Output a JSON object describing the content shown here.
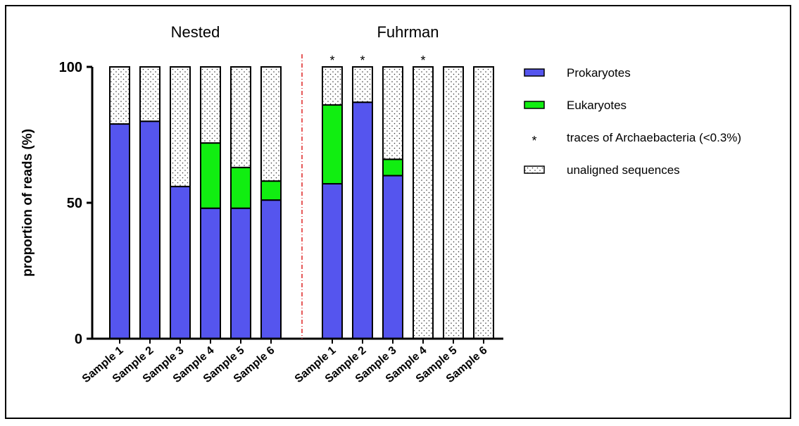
{
  "chart_data": {
    "type": "bar",
    "stacked": true,
    "ylabel": "proportion of reads (%)",
    "ylim": [
      0,
      100
    ],
    "yticks": [
      0,
      50,
      100
    ],
    "groups": [
      {
        "title": "Nested",
        "categories": [
          "Sample 1",
          "Sample 2",
          "Sample 3",
          "Sample 4",
          "Sample 5",
          "Sample 6"
        ]
      },
      {
        "title": "Fuhrman",
        "categories": [
          "Sample 1",
          "Sample 2",
          "Sample 3",
          "Sample 4",
          "Sample 5",
          "Sample 6"
        ]
      }
    ],
    "series": [
      {
        "name": "Prokaryotes",
        "color": "#5555ee",
        "values": [
          79,
          80,
          56,
          48,
          48,
          51,
          57,
          87,
          60,
          0,
          0,
          0
        ]
      },
      {
        "name": "Eukaryotes",
        "color": "#11ee11",
        "values": [
          0,
          0,
          0,
          24,
          15,
          7,
          29,
          0,
          6,
          0,
          0,
          0
        ]
      },
      {
        "name": "unaligned sequences",
        "pattern": "dotted",
        "values": [
          21,
          20,
          44,
          28,
          37,
          42,
          14,
          13,
          34,
          100,
          100,
          100
        ]
      }
    ],
    "archaea_trace_marker": "*",
    "archaea_trace_bars": [
      6,
      7,
      9
    ],
    "legend": {
      "position": "right",
      "entries": [
        {
          "label": "Prokaryotes",
          "symbol": "box",
          "color": "#5555ee"
        },
        {
          "label": "Eukaryotes",
          "symbol": "box",
          "color": "#11ee11"
        },
        {
          "label": "traces of Archaebacteria (<0.3%)",
          "symbol": "*"
        },
        {
          "label": "unaligned sequences",
          "symbol": "dotted-box"
        }
      ]
    },
    "separator_color": "#dd2222"
  }
}
